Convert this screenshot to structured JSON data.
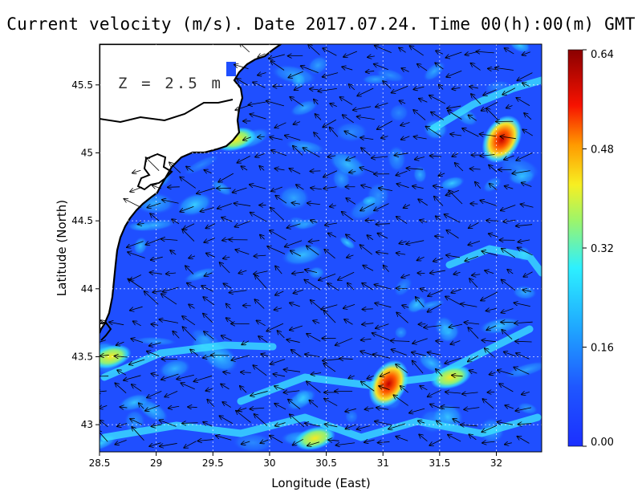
{
  "title": "Current velocity (m/s). Date 2017.07.24. Time 00(h):00(m) GMT",
  "depth_label": "Z = 2.5 m",
  "xlabel": "Longitude (East)",
  "ylabel": "Latitude (North)",
  "colors": {
    "low": "#1f4fff",
    "mid": "#29d9ff",
    "high": "#f7ea22",
    "max": "#8a0000",
    "land": "#ffffff",
    "coast": "#000000"
  },
  "chart_data": {
    "type": "heatmap",
    "xlim": [
      28.5,
      32.4
    ],
    "ylim": [
      42.8,
      45.8
    ],
    "x_ticks": [
      28.5,
      29,
      29.5,
      30,
      30.5,
      31,
      31.5,
      32
    ],
    "x_tick_labels": [
      "28.5",
      "29",
      "29.5",
      "30",
      "30.5",
      "31",
      "31.5",
      "32"
    ],
    "y_ticks": [
      43,
      43.5,
      44,
      44.5,
      45,
      45.5
    ],
    "y_tick_labels": [
      "43",
      "43.5",
      "44",
      "44.5",
      "45",
      "45.5"
    ],
    "grid": true,
    "colorbar": {
      "min": 0.0,
      "max": 0.64,
      "ticks": [
        0.0,
        0.16,
        0.32,
        0.48,
        0.64
      ],
      "tick_labels": [
        "0.00",
        "0.16",
        "0.32",
        "0.48",
        "0.64"
      ]
    },
    "hotspots": [
      {
        "lon": 32.05,
        "lat": 45.1,
        "speed": 0.6
      },
      {
        "lon": 31.05,
        "lat": 43.3,
        "speed": 0.55
      },
      {
        "lon": 31.6,
        "lat": 43.35,
        "speed": 0.42
      },
      {
        "lon": 28.6,
        "lat": 43.5,
        "speed": 0.4
      },
      {
        "lon": 29.7,
        "lat": 45.1,
        "speed": 0.35
      },
      {
        "lon": 30.4,
        "lat": 42.9,
        "speed": 0.38
      }
    ]
  }
}
